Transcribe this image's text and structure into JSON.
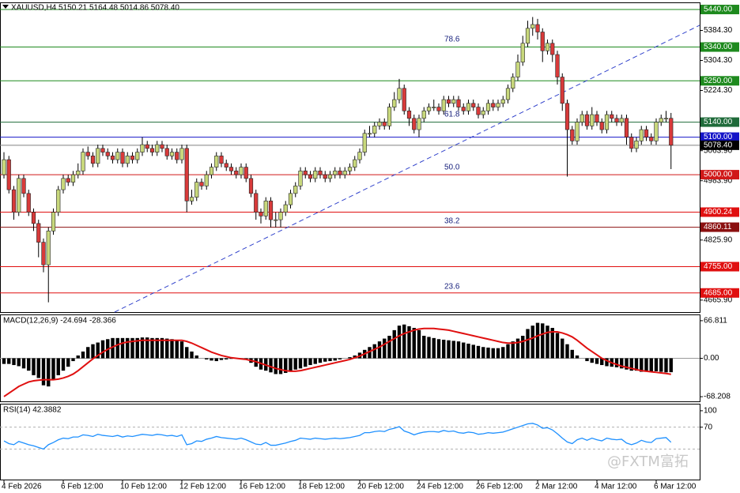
{
  "chart_data": [
    {
      "type": "candlestick",
      "title": "XAUUSD,H4  5150.21 5164.48 5014.86 5078.40",
      "categories": [
        "4 Feb 2026",
        null,
        null,
        null,
        null,
        null,
        null,
        null,
        null,
        null,
        null,
        null,
        "6 Feb 12:00",
        null,
        null,
        null,
        null,
        null,
        null,
        null,
        null,
        null,
        null,
        null,
        "10 Feb 12:00",
        null,
        null,
        null,
        null,
        null,
        null,
        null,
        null,
        null,
        null,
        null,
        "12 Feb 12:00",
        null,
        null,
        null,
        null,
        null,
        null,
        null,
        null,
        null,
        null,
        null,
        "16 Feb 12:00",
        null,
        null,
        null,
        null,
        null,
        null,
        null,
        null,
        null,
        null,
        null,
        "18 Feb 12:00",
        null,
        null,
        null,
        null,
        null,
        null,
        null,
        null,
        null,
        null,
        null,
        "20 Feb 12:00",
        null,
        null,
        null,
        null,
        null,
        null,
        null,
        null,
        null,
        null,
        null,
        "24 Feb 12:00",
        null,
        null,
        null,
        null,
        null,
        null,
        null,
        null,
        null,
        null,
        null,
        "26 Feb 12:00",
        null,
        null,
        null,
        null,
        null,
        null,
        null,
        null,
        null,
        null,
        null,
        "2 Mar 12:00",
        null,
        null,
        null,
        null,
        null,
        null,
        null,
        null,
        null,
        null,
        null,
        "4 Mar 12:00",
        null,
        null,
        null,
        null,
        null,
        null,
        null,
        null,
        null,
        null,
        null,
        "6 Mar 12:00",
        null,
        null,
        null
      ],
      "open": [
        5000,
        5040,
        4960,
        4900,
        4990,
        4950,
        4900,
        4870,
        4820,
        4760,
        4850,
        4900,
        4960,
        4990,
        4980,
        5000,
        5010,
        5060,
        5050,
        5030,
        5070,
        5060,
        5050,
        5040,
        5060,
        5030,
        5050,
        5040,
        5060,
        5080,
        5070,
        5060,
        5080,
        5070,
        5050,
        5060,
        5040,
        5070,
        4930,
        4940,
        4980,
        4970,
        5000,
        5020,
        5050,
        5030,
        5020,
        5010,
        5000,
        5020,
        4990,
        4950,
        4900,
        4890,
        4930,
        4880,
        4880,
        4900,
        4920,
        4950,
        4970,
        5010,
        5000,
        4990,
        5010,
        5000,
        4990,
        5000,
        5010,
        5000,
        5010,
        5020,
        5040,
        5060,
        5110,
        5110,
        5130,
        5140,
        5130,
        5180,
        5200,
        5230,
        5170,
        5150,
        5120,
        5150,
        5170,
        5180,
        5180,
        5170,
        5200,
        5190,
        5200,
        5180,
        5170,
        5190,
        5180,
        5160,
        5170,
        5190,
        5180,
        5190,
        5200,
        5230,
        5260,
        5300,
        5350,
        5390,
        5400,
        5380,
        5330,
        5350,
        5320,
        5260,
        5190,
        5120,
        5090,
        5140,
        5160,
        5130,
        5160,
        5140,
        5120,
        5160,
        5150,
        5140,
        5150,
        5100,
        5070,
        5090,
        5120,
        5100,
        5090,
        5140,
        5150,
        5150.21
      ],
      "high": [
        5060,
        5050,
        4970,
        5000,
        5000,
        4960,
        4910,
        4880,
        4830,
        4860,
        4910,
        4970,
        5000,
        5000,
        5010,
        5030,
        5070,
        5075,
        5060,
        5080,
        5080,
        5070,
        5060,
        5070,
        5070,
        5060,
        5060,
        5070,
        5100,
        5090,
        5080,
        5090,
        5090,
        5080,
        5070,
        5070,
        5080,
        5080,
        4960,
        4990,
        4990,
        5010,
        5030,
        5060,
        5060,
        5040,
        5030,
        5020,
        5030,
        5030,
        5000,
        4960,
        4910,
        4940,
        4940,
        4900,
        4910,
        4930,
        4960,
        4980,
        5020,
        5020,
        5010,
        5020,
        5020,
        5010,
        5010,
        5020,
        5020,
        5020,
        5030,
        5050,
        5070,
        5120,
        5130,
        5140,
        5150,
        5150,
        5190,
        5220,
        5255,
        5240,
        5180,
        5160,
        5160,
        5180,
        5190,
        5200,
        5190,
        5210,
        5210,
        5210,
        5210,
        5190,
        5200,
        5200,
        5190,
        5180,
        5200,
        5200,
        5200,
        5210,
        5240,
        5270,
        5320,
        5370,
        5410,
        5420,
        5415,
        5390,
        5360,
        5360,
        5330,
        5270,
        5200,
        5130,
        5150,
        5170,
        5170,
        5180,
        5170,
        5150,
        5170,
        5170,
        5160,
        5160,
        5160,
        5110,
        5100,
        5130,
        5130,
        5110,
        5150,
        5160,
        5170,
        5164.48
      ],
      "low": [
        4990,
        4950,
        4880,
        4890,
        4940,
        4890,
        4850,
        4780,
        4740,
        4660,
        4840,
        4890,
        4950,
        4970,
        4970,
        4990,
        5000,
        5040,
        5020,
        5020,
        5050,
        5040,
        5030,
        5030,
        5020,
        5020,
        5030,
        5030,
        5050,
        5060,
        5050,
        5050,
        5060,
        5040,
        5040,
        5030,
        5030,
        4900,
        4920,
        4930,
        4960,
        4960,
        4990,
        5010,
        5020,
        5010,
        5000,
        4990,
        4990,
        4980,
        4940,
        4880,
        4870,
        4880,
        4860,
        4860,
        4860,
        4890,
        4910,
        4940,
        4960,
        4990,
        4980,
        4980,
        4990,
        4980,
        4980,
        4990,
        4990,
        4990,
        5000,
        5010,
        5030,
        5050,
        5100,
        5100,
        5120,
        5120,
        5120,
        5170,
        5190,
        5160,
        5130,
        5110,
        5100,
        5140,
        5160,
        5170,
        5160,
        5160,
        5180,
        5180,
        5170,
        5160,
        5160,
        5170,
        5150,
        5150,
        5160,
        5170,
        5170,
        5180,
        5190,
        5220,
        5250,
        5290,
        5340,
        5370,
        5360,
        5300,
        5320,
        5300,
        5240,
        5170,
        4995,
        5080,
        5080,
        5130,
        5120,
        5120,
        5130,
        5110,
        5110,
        5140,
        5130,
        5130,
        5080,
        5060,
        5060,
        5080,
        5090,
        5080,
        5080,
        5130,
        5140,
        5014.86
      ],
      "close": [
        5040,
        4960,
        4900,
        4990,
        4950,
        4900,
        4870,
        4820,
        4760,
        4850,
        4900,
        4960,
        4990,
        4980,
        5000,
        5010,
        5060,
        5050,
        5030,
        5070,
        5060,
        5050,
        5040,
        5060,
        5030,
        5050,
        5040,
        5060,
        5080,
        5070,
        5060,
        5080,
        5070,
        5050,
        5060,
        5040,
        5070,
        4930,
        4940,
        4980,
        4970,
        5000,
        5020,
        5050,
        5030,
        5020,
        5010,
        5000,
        5020,
        4990,
        4950,
        4900,
        4890,
        4930,
        4880,
        4880,
        4900,
        4920,
        4950,
        4970,
        5010,
        5000,
        4990,
        5010,
        5000,
        4990,
        5000,
        5010,
        5000,
        5010,
        5020,
        5040,
        5060,
        5110,
        5110,
        5130,
        5140,
        5130,
        5180,
        5200,
        5230,
        5170,
        5150,
        5120,
        5150,
        5170,
        5180,
        5180,
        5170,
        5200,
        5190,
        5200,
        5180,
        5170,
        5190,
        5180,
        5160,
        5170,
        5190,
        5180,
        5190,
        5200,
        5230,
        5260,
        5300,
        5350,
        5390,
        5400,
        5380,
        5330,
        5350,
        5320,
        5260,
        5190,
        5120,
        5090,
        5140,
        5160,
        5130,
        5160,
        5140,
        5120,
        5160,
        5150,
        5140,
        5150,
        5100,
        5070,
        5090,
        5120,
        5100,
        5090,
        5140,
        5150,
        5150.21,
        5078.4
      ],
      "up_color": "#c8d87c",
      "down_color": "#d83a3a",
      "ylim": [
        4634,
        5459
      ],
      "yticks": [
        {
          "value": 5384.3,
          "label": "5384.30"
        },
        {
          "value": 5304.3,
          "label": "5304.30"
        },
        {
          "value": 5224.3,
          "label": "5224.30"
        },
        {
          "value": 5063.9,
          "label": "5063.90"
        },
        {
          "value": 4983.9,
          "label": "4983.90"
        },
        {
          "value": 4825.9,
          "label": "4825.90"
        },
        {
          "value": 4665.9,
          "label": "4665.90"
        }
      ],
      "levels": [
        {
          "value": 5440,
          "label": "5440.00",
          "color": "#1e8a1e"
        },
        {
          "value": 5340,
          "label": "5340.00",
          "color": "#1e8a1e"
        },
        {
          "value": 5250,
          "label": "5250.00",
          "color": "#1e8a1e"
        },
        {
          "value": 5140,
          "label": "5140.00",
          "color": "#1f6b3a"
        },
        {
          "value": 5100,
          "label": "5100.00",
          "color": "#1515c8"
        },
        {
          "value": 5078.4,
          "label": "5078.40",
          "color": "#808080",
          "box_color": "#000000"
        },
        {
          "value": 5000,
          "label": "5000.00",
          "color": "#d01818"
        },
        {
          "value": 4900.24,
          "label": "4900.24",
          "color": "#e01010"
        },
        {
          "value": 4860.11,
          "label": "4860.11",
          "color": "#8b1010"
        },
        {
          "value": 4755,
          "label": "4755.00",
          "color": "#e01010"
        },
        {
          "value": 4685,
          "label": "4685.00",
          "color": "#e01010"
        }
      ],
      "fib_levels": [
        {
          "value": 5352,
          "label": "78.6"
        },
        {
          "value": 5152,
          "label": "61.8"
        },
        {
          "value": 5011,
          "label": "50.0"
        },
        {
          "value": 4868,
          "label": "38.2"
        },
        {
          "value": 4693,
          "label": "23.6"
        }
      ],
      "trendline": {
        "x": [
          22.4,
          140.8
        ],
        "y": [
          4634,
          5398
        ],
        "color": "#3344cc"
      }
    },
    {
      "type": "macd",
      "title": "MACD(12,26,9) -24.694 -28.366",
      "histogram": [
        -10,
        -10,
        -12,
        -14,
        -18,
        -22,
        -30,
        -35,
        -48,
        -50,
        -38,
        -30,
        -22,
        -15,
        -5,
        5,
        12,
        20,
        25,
        28,
        32,
        34,
        36,
        36,
        36,
        36,
        36,
        36,
        37,
        37,
        36,
        36,
        36,
        35,
        34,
        32,
        30,
        20,
        12,
        5,
        0,
        -2,
        -4,
        -5,
        -3,
        -2,
        -1,
        0,
        0,
        -2,
        -8,
        -15,
        -20,
        -22,
        -25,
        -28,
        -28,
        -26,
        -24,
        -20,
        -18,
        -15,
        -12,
        -10,
        -8,
        -6,
        -5,
        -4,
        -2,
        0,
        2,
        5,
        10,
        15,
        20,
        25,
        30,
        35,
        40,
        50,
        58,
        60,
        57,
        54,
        50,
        40,
        38,
        36,
        34,
        33,
        32,
        31,
        30,
        28,
        26,
        24,
        22,
        20,
        19,
        18,
        18,
        20,
        25,
        30,
        35,
        40,
        52,
        58,
        63,
        62,
        58,
        54,
        45,
        35,
        25,
        15,
        5,
        0,
        -5,
        -8,
        -10,
        -12,
        -14,
        -15,
        -16,
        -18,
        -20,
        -22,
        -22,
        -24,
        -24,
        -24,
        -23,
        -24,
        -25,
        -24.694
      ],
      "signal": [
        -68,
        -62,
        -56,
        -50,
        -46,
        -42,
        -40,
        -39,
        -38,
        -38,
        -38,
        -37,
        -35,
        -32,
        -28,
        -22,
        -15,
        -8,
        -1,
        5,
        11,
        16,
        20,
        24,
        27,
        29,
        30,
        31,
        32,
        32,
        32,
        32,
        32,
        32,
        32,
        32,
        32,
        30,
        27,
        23,
        19,
        15,
        11,
        8,
        5,
        3,
        1,
        0,
        -1,
        -2,
        -4,
        -6,
        -9,
        -12,
        -15,
        -18,
        -20,
        -22,
        -23,
        -23,
        -22,
        -20,
        -18,
        -16,
        -14,
        -12,
        -10,
        -8,
        -6,
        -4,
        -2,
        1,
        4,
        8,
        12,
        16,
        20,
        25,
        30,
        35,
        40,
        44,
        47,
        50,
        52,
        53,
        53,
        53,
        52,
        51,
        50,
        48,
        46,
        44,
        42,
        40,
        38,
        36,
        34,
        32,
        30,
        28,
        27,
        27,
        28,
        30,
        33,
        36,
        40,
        43,
        46,
        47,
        47,
        45,
        42,
        38,
        32,
        25,
        18,
        12,
        6,
        0,
        -4,
        -8,
        -11,
        -14,
        -16,
        -18,
        -20,
        -22,
        -23,
        -24,
        -25,
        -26,
        -27,
        -28.366
      ],
      "histogram_color": "#000000",
      "signal_color": "#e01010",
      "ylim": [
        -76.5,
        76.5
      ],
      "yticks": [
        66.811,
        {
          "value": 0,
          "label": "0.00"
        },
        -68.208
      ]
    },
    {
      "type": "line",
      "title": "RSI(14) 42.3882",
      "values": [
        45,
        40,
        38,
        44,
        41,
        38,
        36,
        33,
        30,
        38,
        42,
        47,
        50,
        49,
        52,
        52,
        56,
        55,
        53,
        57,
        55,
        54,
        53,
        55,
        52,
        54,
        53,
        55,
        57,
        56,
        55,
        57,
        56,
        54,
        55,
        53,
        56,
        38,
        40,
        45,
        44,
        48,
        50,
        53,
        51,
        50,
        49,
        48,
        50,
        47,
        43,
        39,
        38,
        42,
        37,
        37,
        39,
        41,
        44,
        46,
        50,
        49,
        48,
        50,
        49,
        48,
        49,
        50,
        49,
        50,
        51,
        53,
        55,
        60,
        60,
        62,
        63,
        62,
        66,
        68,
        71,
        63,
        60,
        56,
        59,
        61,
        62,
        62,
        61,
        64,
        62,
        63,
        60,
        59,
        61,
        60,
        57,
        58,
        60,
        59,
        60,
        61,
        64,
        67,
        70,
        73,
        76,
        77,
        74,
        68,
        69,
        65,
        58,
        50,
        43,
        40,
        47,
        50,
        46,
        50,
        47,
        45,
        50,
        48,
        47,
        48,
        41,
        38,
        41,
        46,
        43,
        42,
        49,
        50,
        51,
        42.3882
      ],
      "color": "#1e90ff",
      "ylim": [
        -25.7,
        111.4
      ],
      "yticks": [
        100,
        70
      ],
      "levels": [
        30,
        70
      ]
    }
  ],
  "watermark": "@FXTM富拓"
}
